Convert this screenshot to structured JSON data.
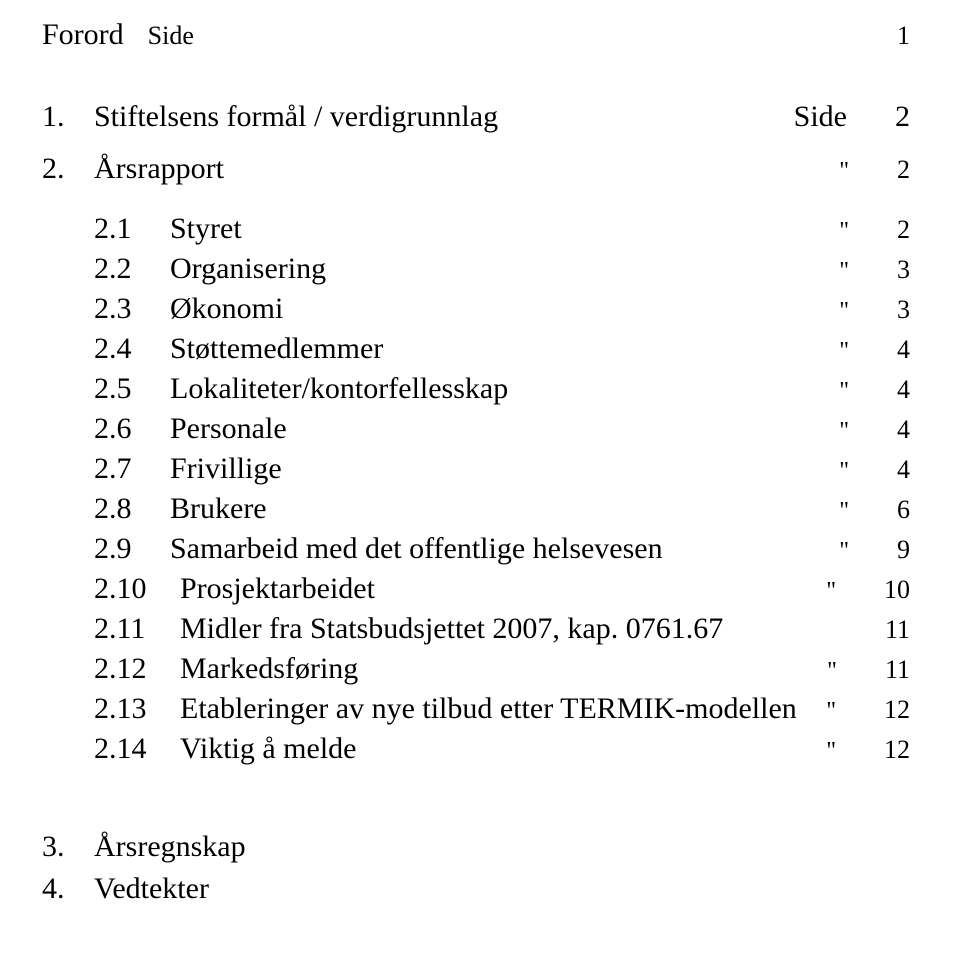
{
  "forord": {
    "label": "Forord",
    "side_label": "Side",
    "page": "1"
  },
  "section1": {
    "num": "1.",
    "title": "Stiftelsens formål / verdigrunnlag",
    "mid": "Side",
    "page": "2"
  },
  "section2": {
    "num": "2.",
    "title": "Årsrapport",
    "mid": "\"",
    "page": "2"
  },
  "subs": [
    {
      "num": "2.1",
      "title": "Styret",
      "mid": "\"",
      "page": "2"
    },
    {
      "num": "2.2",
      "title": "Organisering",
      "mid": "\"",
      "page": "3"
    },
    {
      "num": "2.3",
      "title": "Økonomi",
      "mid": "\"",
      "page": "3"
    },
    {
      "num": "2.4",
      "title": "Støttemedlemmer",
      "mid": "\"",
      "page": "4"
    },
    {
      "num": "2.5",
      "title": "Lokaliteter/kontorfellesskap",
      "mid": "\"",
      "page": "4"
    },
    {
      "num": "2.6",
      "title": "Personale",
      "mid": "\"",
      "page": "4"
    },
    {
      "num": "2.7",
      "title": "Frivillige",
      "mid": "\"",
      "page": "4"
    },
    {
      "num": "2.8",
      "title": "Brukere",
      "mid": "\"",
      "page": "6"
    },
    {
      "num": "2.9",
      "title": "Samarbeid med det offentlige helsevesen",
      "mid": "\"",
      "page": "9"
    },
    {
      "num": "2.10",
      "title": "Prosjektarbeidet",
      "mid": "\"",
      "page": "10"
    },
    {
      "num": "2.11",
      "title": "Midler fra Statsbudsjettet 2007, kap. 0761.67",
      "mid": "",
      "page": "11"
    },
    {
      "num": "2.12",
      "title": "Markedsføring",
      "mid": "\"",
      "page": "11"
    },
    {
      "num": "2.13",
      "title": "Etableringer av nye tilbud etter TERMIK-modellen",
      "mid": "\"",
      "page": "12"
    },
    {
      "num": "2.14",
      "title": "Viktig å melde",
      "mid": "\"",
      "page": "12"
    }
  ],
  "section3": {
    "num": "3.",
    "title": "Årsregnskap"
  },
  "section4": {
    "num": "4.",
    "title": "Vedtekter"
  }
}
